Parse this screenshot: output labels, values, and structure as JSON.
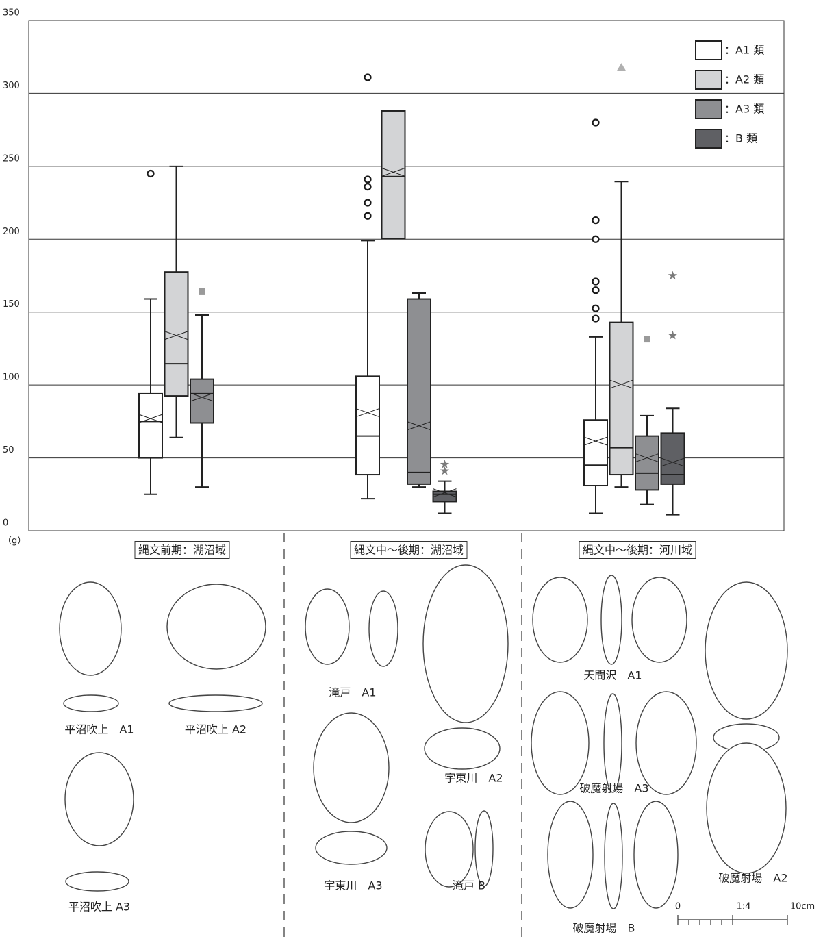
{
  "chart_data": {
    "type": "box",
    "y_unit": "（g）",
    "ylim": [
      0,
      350
    ],
    "yticks": [
      0,
      50,
      100,
      150,
      200,
      250,
      300,
      350
    ],
    "grid": true,
    "legend_position": "top-right",
    "categories": [
      "縄文前期：湖沼域",
      "縄文中〜後期：湖沼域",
      "縄文中〜後期：河川域"
    ],
    "series": [
      {
        "name": "：A1 類",
        "color": "#ffffff",
        "outlier_marker": "circle",
        "outlier_color": "#1a1a1a",
        "values": [
          {
            "min": 25,
            "q1": 50,
            "median": 75,
            "mean": 77,
            "q3": 94,
            "max": 159,
            "outliers": [
              245
            ]
          },
          {
            "min": 22,
            "q1": 38.5,
            "median": 65,
            "mean": 81,
            "q3": 106,
            "max": 199,
            "outliers": [
              311,
              241,
              236,
              225,
              216
            ]
          },
          {
            "min": 12,
            "q1": 31,
            "median": 45,
            "mean": 61.5,
            "q3": 76,
            "max": 133,
            "outliers": [
              280,
              213,
              200,
              171,
              165,
              152.6,
              145.6
            ]
          }
        ]
      },
      {
        "name": "：A2 類",
        "color": "#d3d4d6",
        "outlier_marker": "triangle",
        "outlier_color": "#b0b0b0",
        "values": [
          {
            "min": 64,
            "q1": 92.5,
            "median": 114.6,
            "mean": 134,
            "q3": 177.5,
            "max": 250,
            "outliers": []
          },
          {
            "min": null,
            "q1": 200.5,
            "median": 243,
            "mean": 246,
            "q3": 288,
            "max": null,
            "outliers": []
          },
          {
            "min": 30,
            "q1": 38.5,
            "median": 57,
            "mean": 100.5,
            "q3": 143,
            "max": 239.5,
            "outliers": [
              318
            ]
          }
        ]
      },
      {
        "name": "：A3 類",
        "color": "#8e8f92",
        "outlier_marker": "square",
        "outlier_color": "#9a9a9a",
        "values": [
          {
            "min": 30,
            "q1": 74,
            "median": 94,
            "mean": 91.6,
            "q3": 104,
            "max": 148,
            "outliers": [
              164
            ]
          },
          {
            "min": 30,
            "q1": 32,
            "median": 40,
            "mean": 72,
            "q3": 159,
            "max": 163,
            "outliers": []
          },
          {
            "min": 18,
            "q1": 28,
            "median": 39.5,
            "mean": 50,
            "q3": 65,
            "max": 79,
            "outliers": [
              131.5
            ]
          }
        ]
      },
      {
        "name": "：B 類",
        "color": "#5f6064",
        "outlier_marker": "star",
        "outlier_color": "#7a7a7a",
        "values": [
          null,
          {
            "min": 12,
            "q1": 20,
            "median": 25,
            "mean": 26,
            "q3": 27,
            "max": 34,
            "outliers": [
              45.5,
              41
            ]
          },
          {
            "min": 11,
            "q1": 32,
            "median": 38.5,
            "mean": 47,
            "q3": 67,
            "max": 84,
            "outliers": [
              175,
              134
            ]
          }
        ]
      }
    ]
  },
  "figures": {
    "captions": [
      "平沼吹上　A1",
      "平沼吹上 A2",
      "平沼吹上 A3",
      "滝戸　A1",
      "宇東川　A2",
      "宇東川　A3",
      "滝戸 B",
      "天間沢　A1",
      "破魔射場　A3",
      "破魔射場　A2",
      "破魔射場　B"
    ],
    "scale": {
      "zero": "0",
      "ratio": "1:4",
      "length": "10cm"
    }
  }
}
